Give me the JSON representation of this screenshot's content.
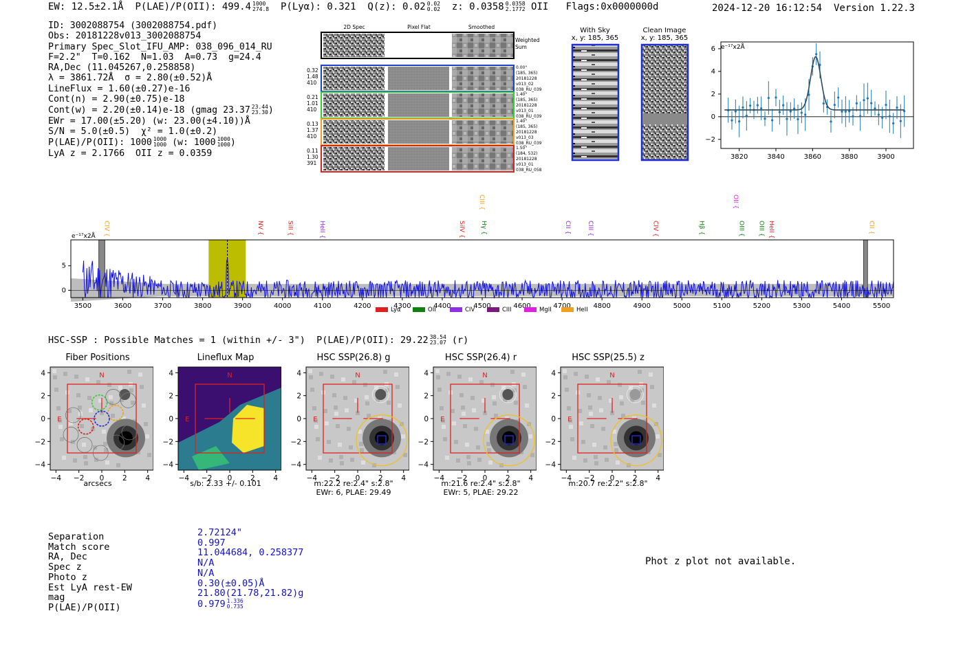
{
  "header": {
    "ew": "EW: 12.5±2.1Å",
    "plae": "P(LAE)/P(OII): 499.4",
    "plae_hi": "1000",
    "plae_lo": "274.8",
    "ply": "P(Lyα): 0.321",
    "qz": "Q(z): 0.02",
    "qz_hi": "0.02",
    "qz_lo": "0.02",
    "z": "z: 0.0358",
    "z_hi": "0.0358",
    "z_lo": "2.1772",
    "z_line": "OII",
    "flags": "Flags:0x0000000d",
    "datetime": "2024-12-20 16:12:54",
    "version": "Version 1.22.3"
  },
  "info": {
    "id": "ID: 3002088754 (3002088754.pdf)",
    "obs": "Obs: 20181228v013_3002088754",
    "primary": "Primary Spec_Slot_IFU_AMP: 038_096_014_RU",
    "fit": "F=2.2\"  T=0.162  N=1.03  A=0.73  g=24.4",
    "radec": "RA,Dec (11.045267,0.258858)",
    "lambda": "λ = 3861.72Å  σ = 2.80(±0.52)Å",
    "lineflux": "LineFlux = 1.60(±0.27)e-16",
    "contn": "Cont(n) = 2.90(±0.75)e-18",
    "contw": "Cont(w) = 2.20(±0.14)e-18 (gmag 23.37",
    "contw_hi": "23.44",
    "contw_lo": "23.30",
    "ewr": "EWr = 17.00(±5.20) (w: 23.00(±4.10))Å",
    "sn": "S/N = 5.0(±0.5)  χ² = 1.0(±0.2)",
    "plae": "P(LAE)/P(OII): 1000",
    "plae_hi": "1000",
    "plae_lo": "1000",
    "plae_w": "(w: 1000",
    "plae_w_hi": "1000",
    "plae_w_lo": "1000",
    "lyaz": "LyA z = 2.1766  OII z = 0.0359"
  },
  "cutouts_top": {
    "col1": "2D Spec",
    "col2": "Pixel Flat",
    "col3": "Smoothed",
    "weighted": [
      "Weighted",
      "Sum"
    ],
    "rows": [
      {
        "color": "#1f3fd0",
        "left": [
          "0.32",
          "1.48",
          "410"
        ],
        "right": [
          "0.00\"",
          "(185, 365)",
          "20181228",
          "v013_02",
          "038_RU_039"
        ]
      },
      {
        "color": "#30d030",
        "left": [
          "0.21",
          "1.01",
          "410"
        ],
        "right": [
          "1.40\"",
          "(185, 365)",
          "20181228",
          "v013_01",
          "038_RU_039"
        ]
      },
      {
        "color": "#f0a020",
        "left": [
          "0.13",
          "1.37",
          "410"
        ],
        "right": [
          "1.40\"",
          "(185, 365)",
          "20181228",
          "v013_03",
          "038_RU_039"
        ]
      },
      {
        "color": "#e02020",
        "left": [
          "0.11",
          "1.30",
          "391"
        ],
        "right": [
          "1.50\"",
          "(184, 532)",
          "20181228",
          "v013_01",
          "038_RU_058"
        ]
      }
    ]
  },
  "sky": {
    "with_sky": "With Sky",
    "with_sky_xy": "x, y: 185, 365",
    "clean": "Clean Image",
    "clean_xy": "x, y: 185, 365"
  },
  "zoom_plot": {
    "unit": "e⁻¹⁷x2Å",
    "xticks": [
      "3820",
      "3840",
      "3860",
      "3880",
      "3900"
    ],
    "yticks": [
      "6",
      "4",
      "2",
      "0",
      "−2"
    ]
  },
  "spectrum": {
    "unit": "e⁻¹⁷x2Å",
    "xticks": [
      "3500",
      "3600",
      "3700",
      "3800",
      "3900",
      "4000",
      "4100",
      "4200",
      "4300",
      "4400",
      "4500",
      "4600",
      "4700",
      "4800",
      "4900",
      "5000",
      "5100",
      "5200",
      "5300",
      "5400",
      "5500"
    ],
    "yticks": [
      "5",
      "0"
    ],
    "lines": [
      {
        "name": "CIV",
        "wl": 3550,
        "color": "#f0a020",
        "raised": false
      },
      {
        "name": "NV",
        "wl": 3935,
        "color": "#e02020",
        "raised": false
      },
      {
        "name": "SiII",
        "wl": 4010,
        "color": "#e02020",
        "raised": false
      },
      {
        "name": "HeII",
        "wl": 4090,
        "color": "#9030e0",
        "raised": false
      },
      {
        "name": "SiIV",
        "wl": 4440,
        "color": "#e02020",
        "raised": false
      },
      {
        "name": "CIII",
        "wl": 4490,
        "color": "#f0a020",
        "raised": true
      },
      {
        "name": "Hγ",
        "wl": 4495,
        "color": "#108010",
        "raised": false
      },
      {
        "name": "CII",
        "wl": 4705,
        "color": "#9030e0",
        "raised": false
      },
      {
        "name": "CIII",
        "wl": 4762,
        "color": "#9030e0",
        "raised": false
      },
      {
        "name": "CIV",
        "wl": 4925,
        "color": "#e02020",
        "raised": false
      },
      {
        "name": "Hβ",
        "wl": 5040,
        "color": "#108010",
        "raised": false
      },
      {
        "name": "OII",
        "wl": 5125,
        "color": "#e020e0",
        "raised": true
      },
      {
        "name": "OIII",
        "wl": 5140,
        "color": "#108010",
        "raised": false
      },
      {
        "name": "OIII",
        "wl": 5190,
        "color": "#108010",
        "raised": false
      },
      {
        "name": "HeII",
        "wl": 5215,
        "color": "#e02020",
        "raised": false
      },
      {
        "name": "CII",
        "wl": 5465,
        "color": "#f0a020",
        "raised": false
      }
    ],
    "legend": [
      {
        "name": "Lyα",
        "color": "#e02020"
      },
      {
        "name": "OII",
        "color": "#108010"
      },
      {
        "name": "CIV",
        "color": "#9030e0"
      },
      {
        "name": "CIII",
        "color": "#7a1a80"
      },
      {
        "name": "MgII",
        "color": "#e020e0"
      },
      {
        "name": "HeII",
        "color": "#f0a020"
      }
    ]
  },
  "hsc": {
    "line": "HSC-SSP : Possible Matches = 1 (within +/- 3\")  P(LAE)/P(OII): 29.22",
    "line_hi": "38.54",
    "line_lo": "23.07",
    "line_band": "(r)"
  },
  "cutouts": [
    {
      "title": "Fiber Positions",
      "caption1": "arcsecs",
      "caption2": ""
    },
    {
      "title": "Lineflux Map",
      "caption1": "s/b: 2.33 +/- 0.101",
      "caption2": ""
    },
    {
      "title": "HSC SSP(26.8) g",
      "caption1": "m:22.2  re:2.4\"  s:2.8\"",
      "caption2": "EWr: 6, PLAE: 29.49"
    },
    {
      "title": "HSC SSP(26.4) r",
      "caption1": "m:21.6  re:2.4\"  s:2.8\"",
      "caption2": "EWr: 5, PLAE: 29.22"
    },
    {
      "title": "HSC SSP(25.5) z",
      "caption1": "m:20.7  re:2.2\"  s:2.8\"",
      "caption2": ""
    }
  ],
  "cutout_axes": {
    "yticks": [
      "4",
      "2",
      "0",
      "−2",
      "−4"
    ],
    "xticks": [
      "−4",
      "−2",
      "0",
      "2",
      "4"
    ],
    "north": "N",
    "east": "E"
  },
  "match": {
    "labels": [
      "Separation",
      "Match score",
      "RA, Dec",
      "Spec z",
      "Photo z",
      "Est LyA rest-EW",
      "mag",
      "P(LAE)/P(OII)"
    ],
    "values": [
      "2.72124\"",
      "0.997",
      "11.044684, 0.258377",
      "N/A",
      "N/A",
      "0.30(±0.05)Å",
      "21.80(21.78,21.82)g",
      "0.979"
    ],
    "plae_hi": "1.336",
    "plae_lo": "0.735"
  },
  "photz_message": "Phot z plot not available."
}
